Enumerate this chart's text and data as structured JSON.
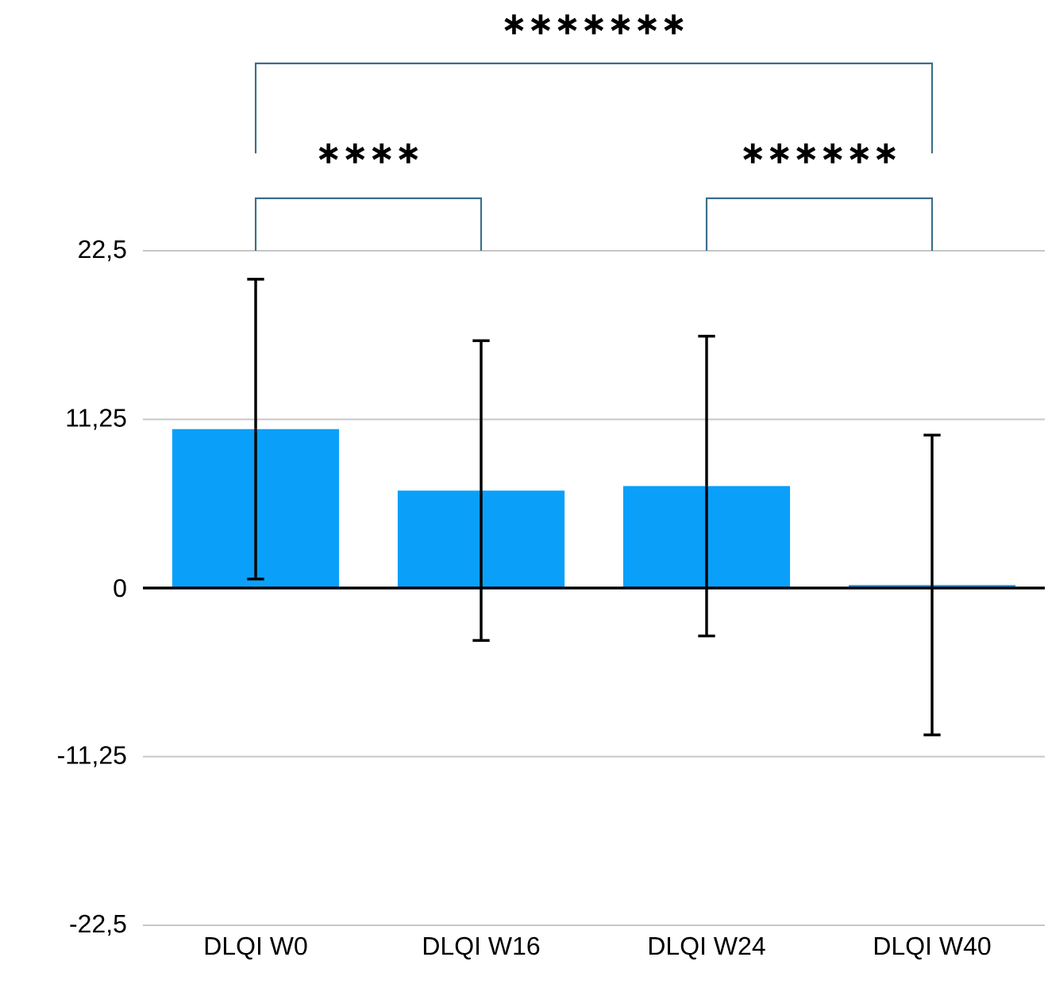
{
  "chart_data": {
    "type": "bar",
    "categories": [
      "DLQI W0",
      "DLQI W16",
      "DLQI W24",
      "DLQI W40"
    ],
    "values": [
      10.6,
      6.5,
      6.8,
      0.2
    ],
    "errors": [
      10,
      10,
      10,
      10
    ],
    "color": "#0aa0fa",
    "ylim": [
      -22.5,
      22.5
    ],
    "yticks": [
      {
        "value": -22.5,
        "label": "-22,5"
      },
      {
        "value": -11.25,
        "label": "-11,25"
      },
      {
        "value": 0,
        "label": "0"
      },
      {
        "value": 11.25,
        "label": "11,25"
      },
      {
        "value": 22.5,
        "label": "22,5"
      }
    ],
    "grid": "y",
    "annotations": [
      "∗∗∗∗",
      "∗∗∗∗∗∗",
      "∗∗∗∗∗∗∗"
    ]
  }
}
